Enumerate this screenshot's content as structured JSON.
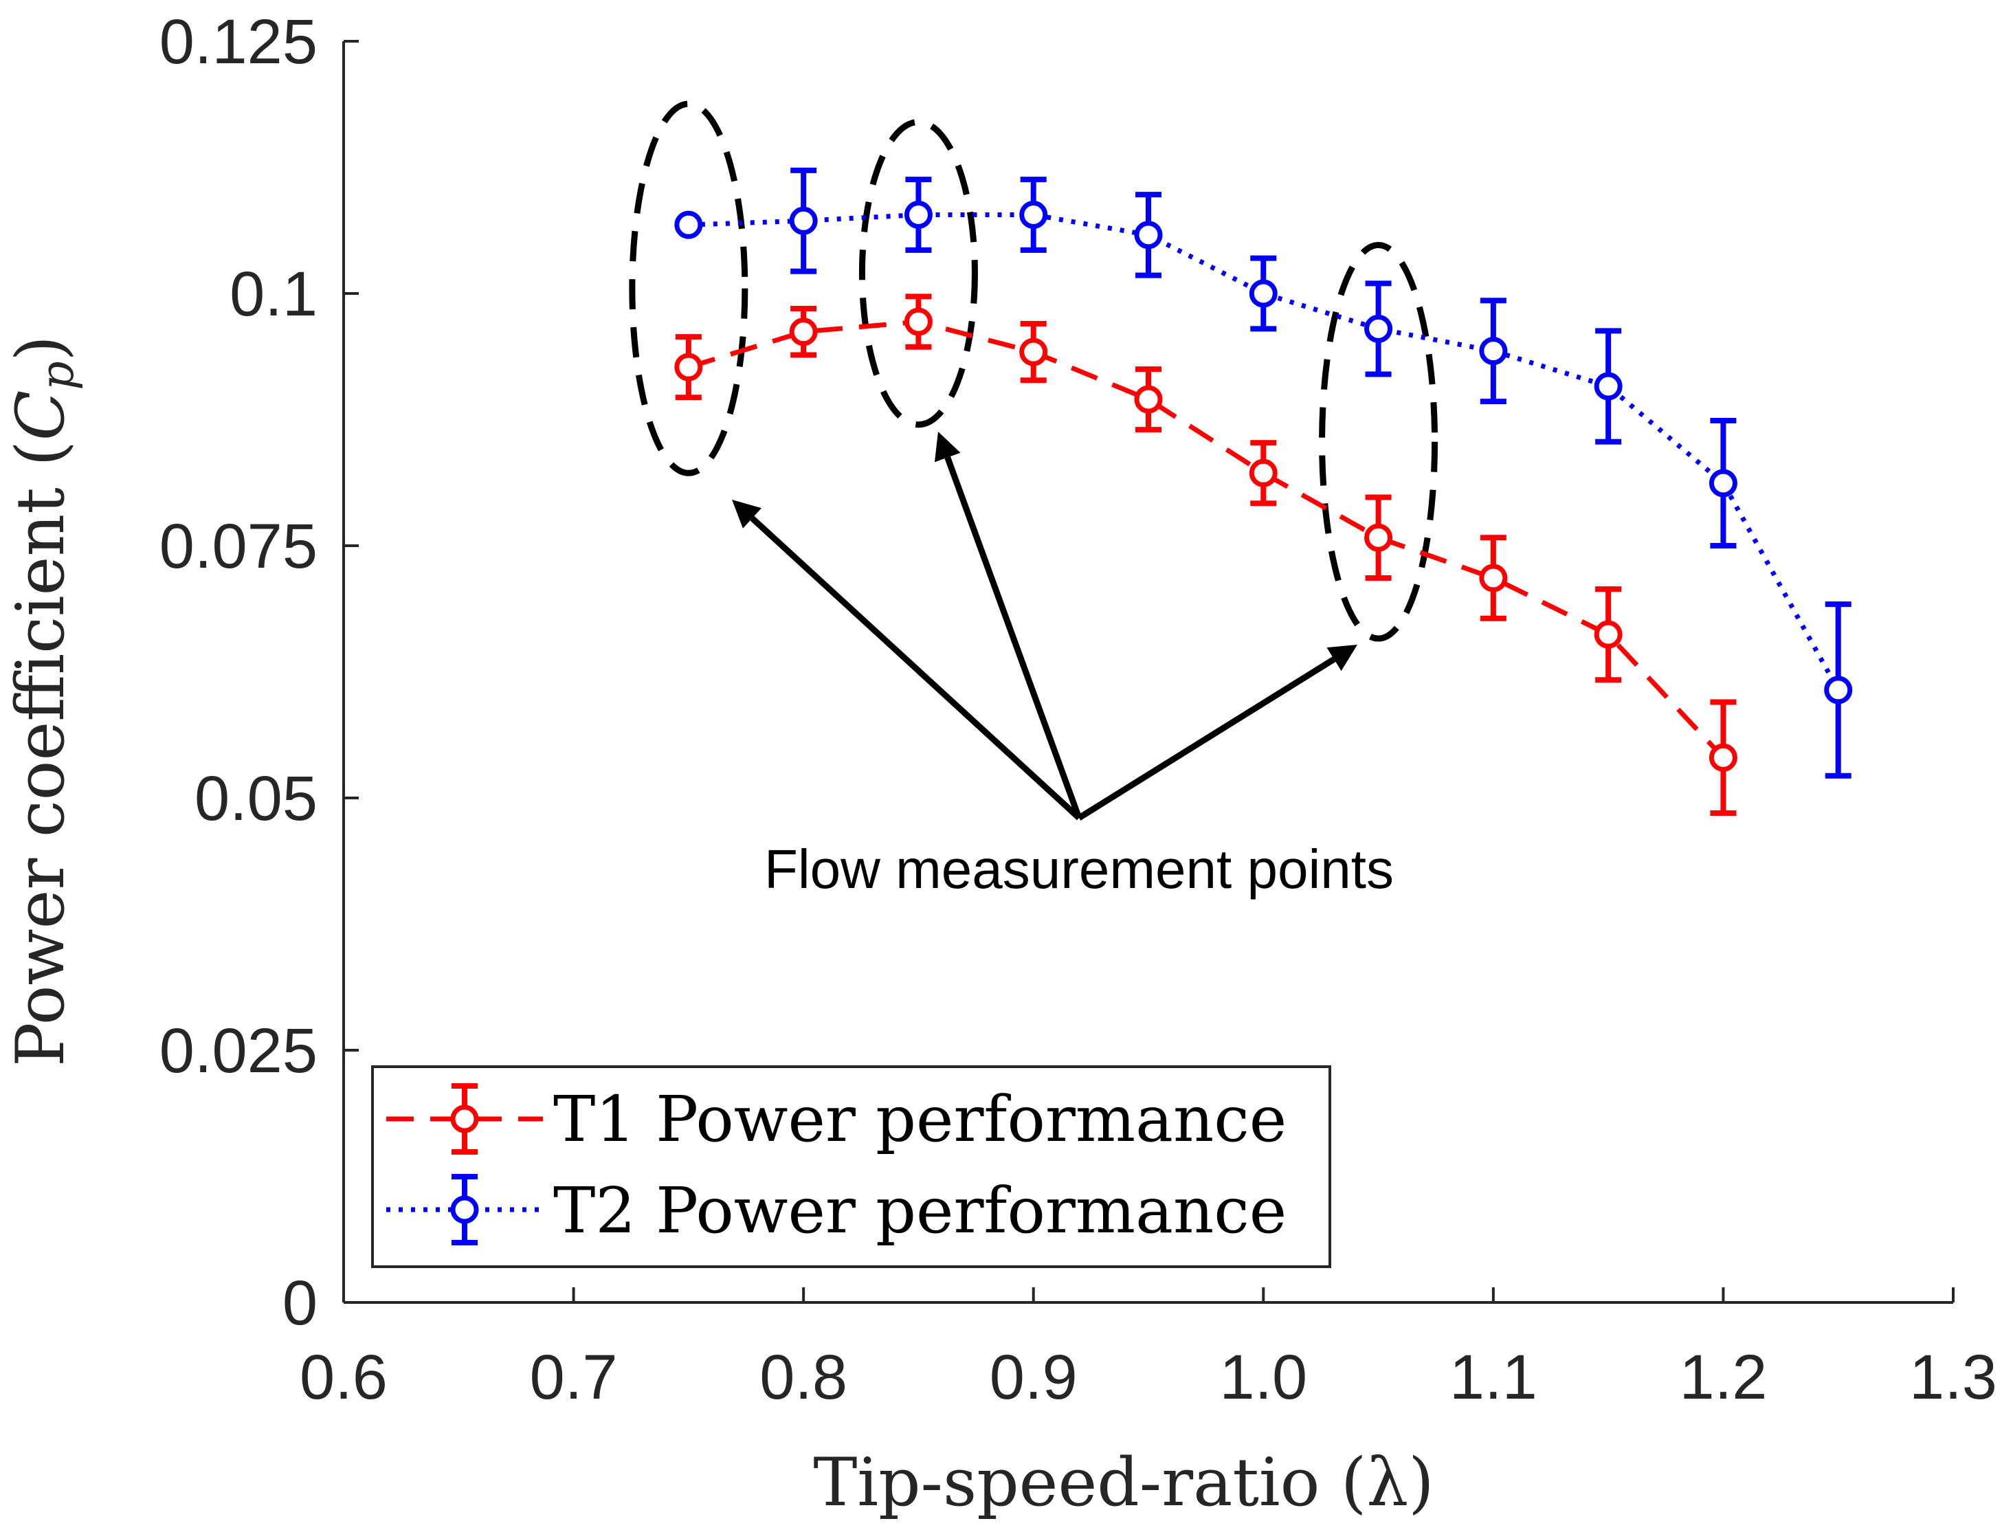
{
  "chart_data": {
    "type": "line",
    "title": "",
    "xlabel": "Tip-speed-ratio (λ)",
    "ylabel": "Power coefficient (C_p)",
    "ylabel_parts": {
      "main": "Power coefficient (",
      "var": "C",
      "sub": "p",
      "close": ")"
    },
    "xlim": [
      0.6,
      1.3
    ],
    "ylim": [
      0,
      0.125
    ],
    "xticks": [
      0.6,
      0.7,
      0.8,
      0.9,
      1.0,
      1.1,
      1.2,
      1.3
    ],
    "xtick_labels": [
      "0.6",
      "0.7",
      "0.8",
      "0.9",
      "1.0",
      "1.1",
      "1.2",
      "1.3"
    ],
    "yticks": [
      0,
      0.025,
      0.05,
      0.075,
      0.1,
      0.125
    ],
    "ytick_labels": [
      "0",
      "0.025",
      "0.05",
      "0.075",
      "0.1",
      "0.125"
    ],
    "grid": false,
    "legend_position": "bottom-left",
    "series": [
      {
        "name": "T1 Power performance",
        "color": "#ff0000",
        "line_style": "dashed",
        "marker": "circle",
        "x": [
          0.75,
          0.8,
          0.85,
          0.9,
          0.95,
          1.0,
          1.05,
          1.1,
          1.15,
          1.2
        ],
        "y": [
          0.0927,
          0.0962,
          0.0972,
          0.0942,
          0.0895,
          0.0822,
          0.0758,
          0.0718,
          0.0662,
          0.054
        ],
        "error": [
          0.003,
          0.0023,
          0.0025,
          0.0028,
          0.003,
          0.003,
          0.004,
          0.004,
          0.0045,
          0.0055
        ]
      },
      {
        "name": "T2 Power performance",
        "color": "#0000ff",
        "line_style": "dotted",
        "marker": "circle",
        "x": [
          0.75,
          0.8,
          0.85,
          0.9,
          0.95,
          1.0,
          1.05,
          1.1,
          1.15,
          1.2,
          1.25
        ],
        "y": [
          0.1068,
          0.1072,
          0.1078,
          0.1078,
          0.1058,
          0.1,
          0.0965,
          0.0943,
          0.0908,
          0.0812,
          0.0607
        ],
        "error": [
          0.0,
          0.005,
          0.0035,
          0.0035,
          0.004,
          0.0035,
          0.0045,
          0.005,
          0.0055,
          0.0062,
          0.0085
        ]
      }
    ],
    "annotation": {
      "text": "Flow measurement points",
      "highlighted_x": [
        0.75,
        0.85,
        1.05
      ]
    }
  }
}
